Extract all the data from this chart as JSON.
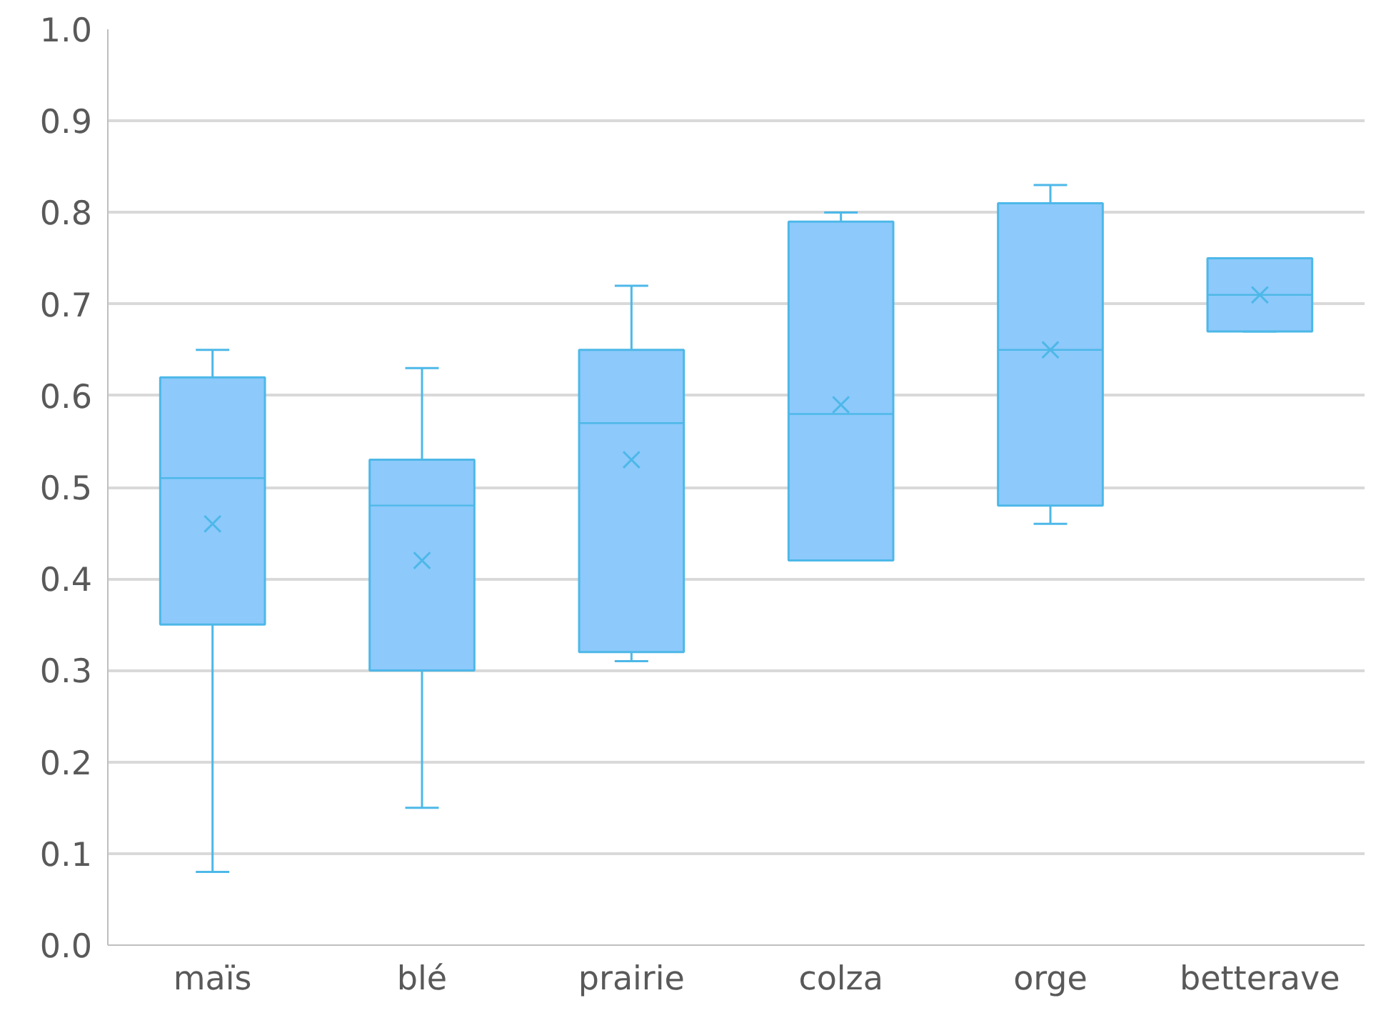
{
  "chart_data": {
    "type": "box",
    "categories": [
      "maïs",
      "blé",
      "prairie",
      "colza",
      "orge",
      "betterave"
    ],
    "series": [
      {
        "color": "#4db8e8",
        "boxes": [
          {
            "low": 0.08,
            "q1": 0.35,
            "median": 0.51,
            "q3": 0.62,
            "high": 0.65,
            "mean": 0.46
          },
          {
            "low": 0.15,
            "q1": 0.3,
            "median": 0.48,
            "q3": 0.53,
            "high": 0.63,
            "mean": 0.42
          },
          {
            "low": 0.31,
            "q1": 0.32,
            "median": 0.57,
            "q3": 0.65,
            "high": 0.72,
            "mean": 0.53
          },
          {
            "low": 0.42,
            "q1": 0.42,
            "median": 0.58,
            "q3": 0.79,
            "high": 0.8,
            "mean": 0.59
          },
          {
            "low": 0.46,
            "q1": 0.48,
            "median": 0.65,
            "q3": 0.81,
            "high": 0.83,
            "mean": 0.65
          },
          {
            "low": 0.67,
            "q1": 0.67,
            "median": 0.71,
            "q3": 0.75,
            "high": 0.75,
            "mean": 0.71
          }
        ]
      }
    ],
    "ylim": [
      0,
      1
    ],
    "yticks": [
      {
        "value": 0,
        "label": "0.0"
      },
      {
        "value": 0.1,
        "label": "0.1"
      },
      {
        "value": 0.2,
        "label": "0.2"
      },
      {
        "value": 0.3,
        "label": "0.3"
      },
      {
        "value": 0.4,
        "label": "0.4"
      },
      {
        "value": 0.5,
        "label": "0.5"
      },
      {
        "value": 0.6,
        "label": "0.6"
      },
      {
        "value": 0.7,
        "label": "0.7"
      },
      {
        "value": 0.8,
        "label": "0.8"
      },
      {
        "value": 0.9,
        "label": "0.9"
      },
      {
        "value": 1.0,
        "label": "1.0"
      }
    ],
    "grid": "y"
  }
}
